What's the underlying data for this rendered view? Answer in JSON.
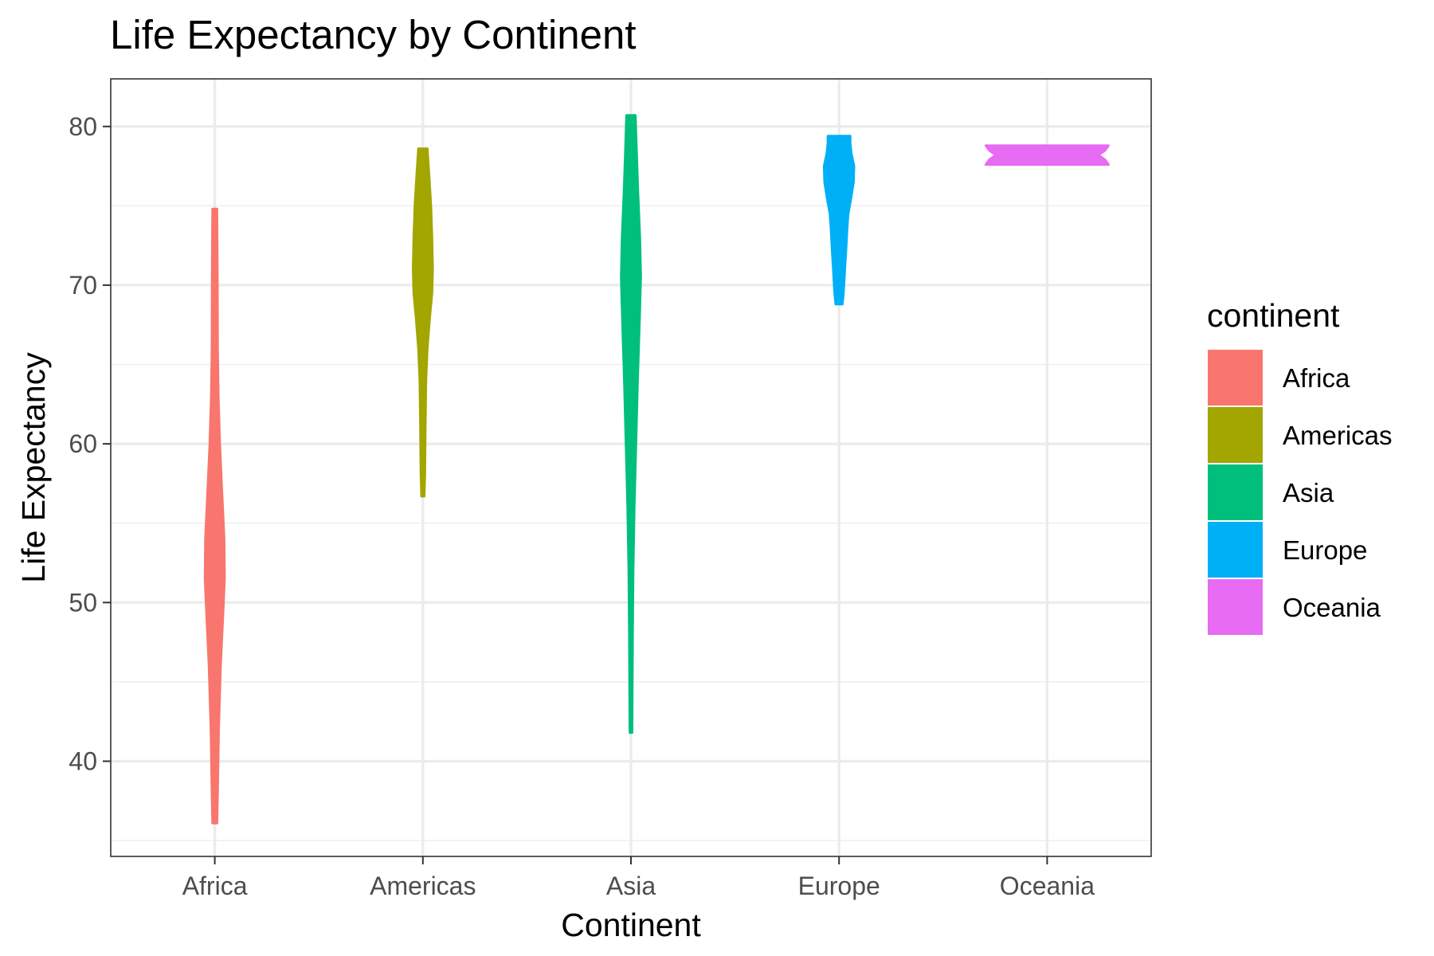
{
  "chart_data": {
    "type": "violin",
    "title": "Life Expectancy by Continent",
    "xlabel": "Continent",
    "ylabel": "Life Expectancy",
    "ylim": [
      34,
      83
    ],
    "yticks": [
      40,
      50,
      60,
      70,
      80
    ],
    "categories": [
      "Africa",
      "Americas",
      "Asia",
      "Europe",
      "Oceania"
    ],
    "legend": {
      "title": "continent",
      "position": "right"
    },
    "grid": true,
    "series": [
      {
        "name": "Africa",
        "color": "#F8766D",
        "min": 36.1,
        "max": 74.8,
        "density": [
          [
            36.1,
            0.2
          ],
          [
            38,
            0.26
          ],
          [
            42,
            0.35
          ],
          [
            46,
            0.52
          ],
          [
            49,
            0.72
          ],
          [
            51.5,
            0.88
          ],
          [
            54,
            0.84
          ],
          [
            57,
            0.64
          ],
          [
            60,
            0.45
          ],
          [
            63,
            0.32
          ],
          [
            66,
            0.26
          ],
          [
            70,
            0.24
          ],
          [
            74.8,
            0.2
          ]
        ]
      },
      {
        "name": "Americas",
        "color": "#A3A500",
        "min": 56.7,
        "max": 78.6,
        "density": [
          [
            56.7,
            0.12
          ],
          [
            58,
            0.18
          ],
          [
            61,
            0.22
          ],
          [
            64,
            0.28
          ],
          [
            66,
            0.4
          ],
          [
            68,
            0.62
          ],
          [
            69.5,
            0.82
          ],
          [
            71,
            0.88
          ],
          [
            73,
            0.82
          ],
          [
            75,
            0.72
          ],
          [
            77,
            0.55
          ],
          [
            78.6,
            0.4
          ]
        ]
      },
      {
        "name": "Asia",
        "color": "#00BF7D",
        "min": 41.8,
        "max": 80.7,
        "density": [
          [
            41.8,
            0.1
          ],
          [
            44,
            0.12
          ],
          [
            48,
            0.15
          ],
          [
            52,
            0.2
          ],
          [
            56,
            0.3
          ],
          [
            60,
            0.45
          ],
          [
            64,
            0.6
          ],
          [
            68,
            0.78
          ],
          [
            70.5,
            0.88
          ],
          [
            73,
            0.8
          ],
          [
            76,
            0.62
          ],
          [
            79,
            0.48
          ],
          [
            80.7,
            0.4
          ]
        ]
      },
      {
        "name": "Europe",
        "color": "#00B0F6",
        "min": 68.8,
        "max": 79.4,
        "density": [
          [
            68.8,
            0.3
          ],
          [
            69.5,
            0.4
          ],
          [
            71,
            0.52
          ],
          [
            72.5,
            0.65
          ],
          [
            73.5,
            0.72
          ],
          [
            74.5,
            0.82
          ],
          [
            75.5,
            1.08
          ],
          [
            76.5,
            1.3
          ],
          [
            77.5,
            1.34
          ],
          [
            78.3,
            1.1
          ],
          [
            79.0,
            1.0
          ],
          [
            79.4,
            1.0
          ]
        ]
      },
      {
        "name": "Oceania",
        "color": "#E76BF3",
        "min": 77.6,
        "max": 78.8,
        "density": [
          [
            77.6,
            5.5
          ],
          [
            77.9,
            5.2
          ],
          [
            78.2,
            4.6
          ],
          [
            78.5,
            5.2
          ],
          [
            78.8,
            5.5
          ]
        ]
      }
    ]
  }
}
